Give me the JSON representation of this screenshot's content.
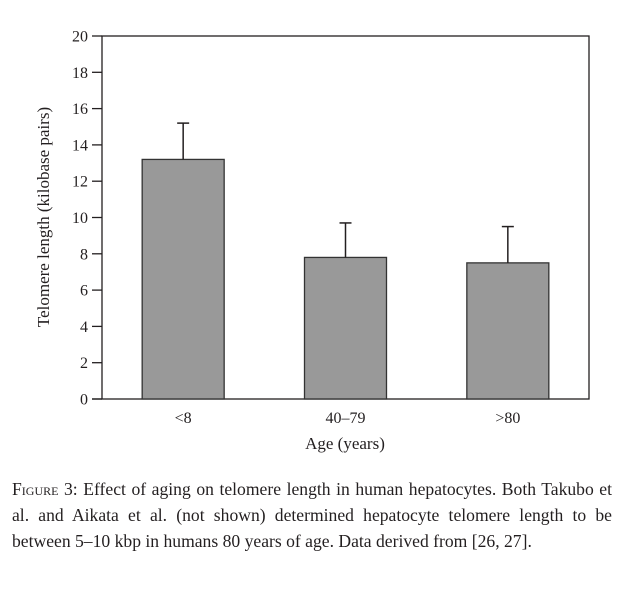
{
  "chart_data": {
    "type": "bar",
    "title": "",
    "xlabel": "Age (years)",
    "ylabel": "Telomere length (kilobase pairs)",
    "categories": [
      "<8",
      "40–79",
      ">80"
    ],
    "values": [
      13.2,
      7.8,
      7.5
    ],
    "error_upper": [
      15.2,
      9.7,
      9.5
    ],
    "ylim": [
      0,
      20
    ],
    "yticks": [
      0,
      2,
      4,
      6,
      8,
      10,
      12,
      14,
      16,
      18,
      20
    ],
    "grid": false,
    "legend": "none",
    "colors": {
      "bar_fill": "#999999",
      "bar_stroke": "#333333",
      "axis": "#231f20"
    }
  },
  "caption": {
    "label": "Figure 3:",
    "text": " Effect of aging on telomere length in human hepatocytes. Both Takubo et al. and Aikata et al. (not shown) determined hepatocyte telomere length to be between 5–10 kbp in humans 80 years of age. Data derived from [26, 27]."
  }
}
